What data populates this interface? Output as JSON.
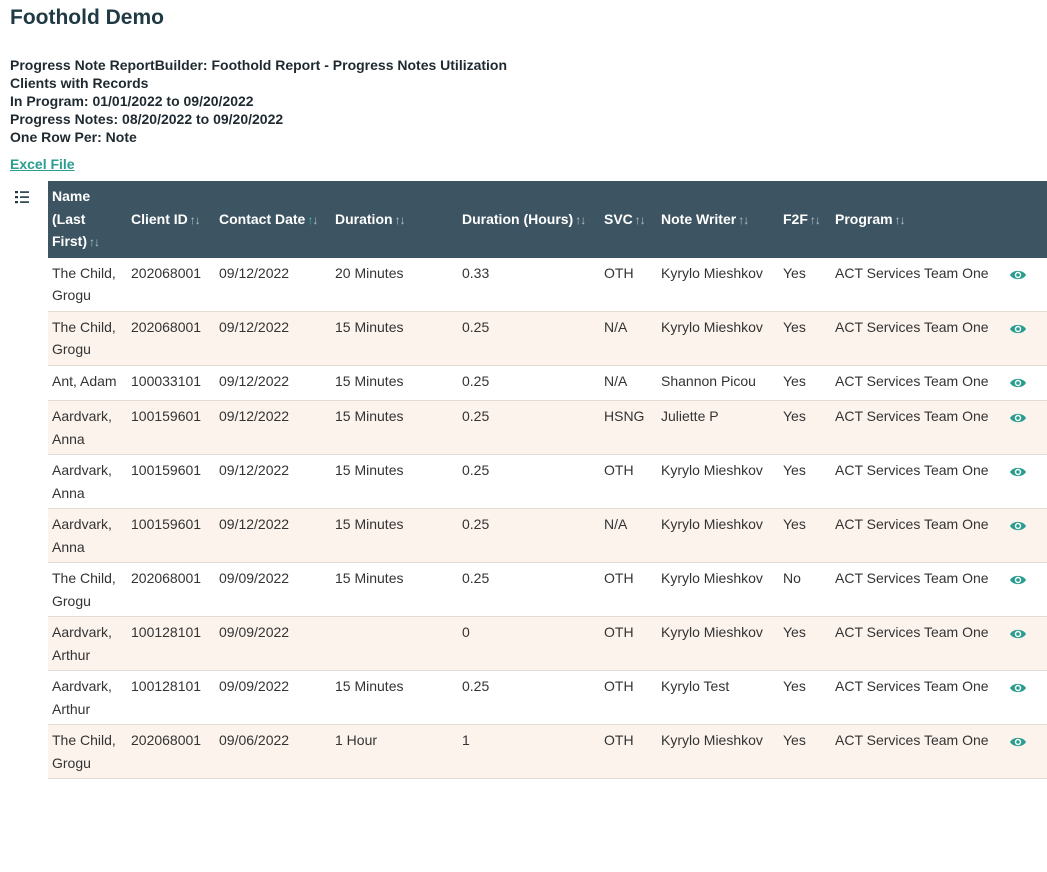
{
  "page": {
    "title": "Foothold Demo"
  },
  "report": {
    "line1": "Progress Note ReportBuilder: Foothold Report - Progress Notes Utilization",
    "line2": "Clients with Records",
    "line3": "In Program: 01/01/2022 to 09/20/2022",
    "line4": "Progress Notes: 08/20/2022 to 09/20/2022",
    "line5": "One Row Per: Note",
    "excel_link": "Excel File"
  },
  "icons": {
    "list_toggle": "list-icon",
    "view": "eye-icon",
    "sort": "sort-arrows-icon"
  },
  "colors": {
    "header_bg": "#3d5562",
    "accent": "#2a9d8f",
    "stripe": "#fcf3ec"
  },
  "table": {
    "columns": [
      "Name (Last First)",
      "Client ID",
      "Contact Date",
      "Duration",
      "Duration (Hours)",
      "SVC",
      "Note Writer",
      "F2F",
      "Program"
    ],
    "sorted_column": "Contact Date",
    "rows": [
      {
        "name": "The Child, Grogu",
        "client_id": "202068001",
        "contact_date": "09/12/2022",
        "duration": "20 Minutes",
        "hours": "0.33",
        "svc": "OTH",
        "writer": "Kyrylo Mieshkov",
        "f2f": "Yes",
        "program": "ACT Services Team One"
      },
      {
        "name": "The Child, Grogu",
        "client_id": "202068001",
        "contact_date": "09/12/2022",
        "duration": "15 Minutes",
        "hours": "0.25",
        "svc": "N/A",
        "writer": "Kyrylo Mieshkov",
        "f2f": "Yes",
        "program": "ACT Services Team One"
      },
      {
        "name": "Ant, Adam",
        "client_id": "100033101",
        "contact_date": "09/12/2022",
        "duration": "15 Minutes",
        "hours": "0.25",
        "svc": "N/A",
        "writer": "Shannon Picou",
        "f2f": "Yes",
        "program": "ACT Services Team One"
      },
      {
        "name": "Aardvark, Anna",
        "client_id": "100159601",
        "contact_date": "09/12/2022",
        "duration": "15 Minutes",
        "hours": "0.25",
        "svc": "HSNG",
        "writer": "Juliette P",
        "f2f": "Yes",
        "program": "ACT Services Team One"
      },
      {
        "name": "Aardvark, Anna",
        "client_id": "100159601",
        "contact_date": "09/12/2022",
        "duration": "15 Minutes",
        "hours": "0.25",
        "svc": "OTH",
        "writer": "Kyrylo Mieshkov",
        "f2f": "Yes",
        "program": "ACT Services Team One"
      },
      {
        "name": "Aardvark, Anna",
        "client_id": "100159601",
        "contact_date": "09/12/2022",
        "duration": "15 Minutes",
        "hours": "0.25",
        "svc": "N/A",
        "writer": "Kyrylo Mieshkov",
        "f2f": "Yes",
        "program": "ACT Services Team One"
      },
      {
        "name": "The Child, Grogu",
        "client_id": "202068001",
        "contact_date": "09/09/2022",
        "duration": "15 Minutes",
        "hours": "0.25",
        "svc": "OTH",
        "writer": "Kyrylo Mieshkov",
        "f2f": "No",
        "program": "ACT Services Team One"
      },
      {
        "name": "Aardvark, Arthur",
        "client_id": "100128101",
        "contact_date": "09/09/2022",
        "duration": "",
        "hours": "0",
        "svc": "OTH",
        "writer": "Kyrylo Mieshkov",
        "f2f": "Yes",
        "program": "ACT Services Team One"
      },
      {
        "name": "Aardvark, Arthur",
        "client_id": "100128101",
        "contact_date": "09/09/2022",
        "duration": "15 Minutes",
        "hours": "0.25",
        "svc": "OTH",
        "writer": "Kyrylo Test",
        "f2f": "Yes",
        "program": "ACT Services Team One"
      },
      {
        "name": "The Child, Grogu",
        "client_id": "202068001",
        "contact_date": "09/06/2022",
        "duration": "1 Hour",
        "hours": "1",
        "svc": "OTH",
        "writer": "Kyrylo Mieshkov",
        "f2f": "Yes",
        "program": "ACT Services Team One"
      }
    ]
  }
}
